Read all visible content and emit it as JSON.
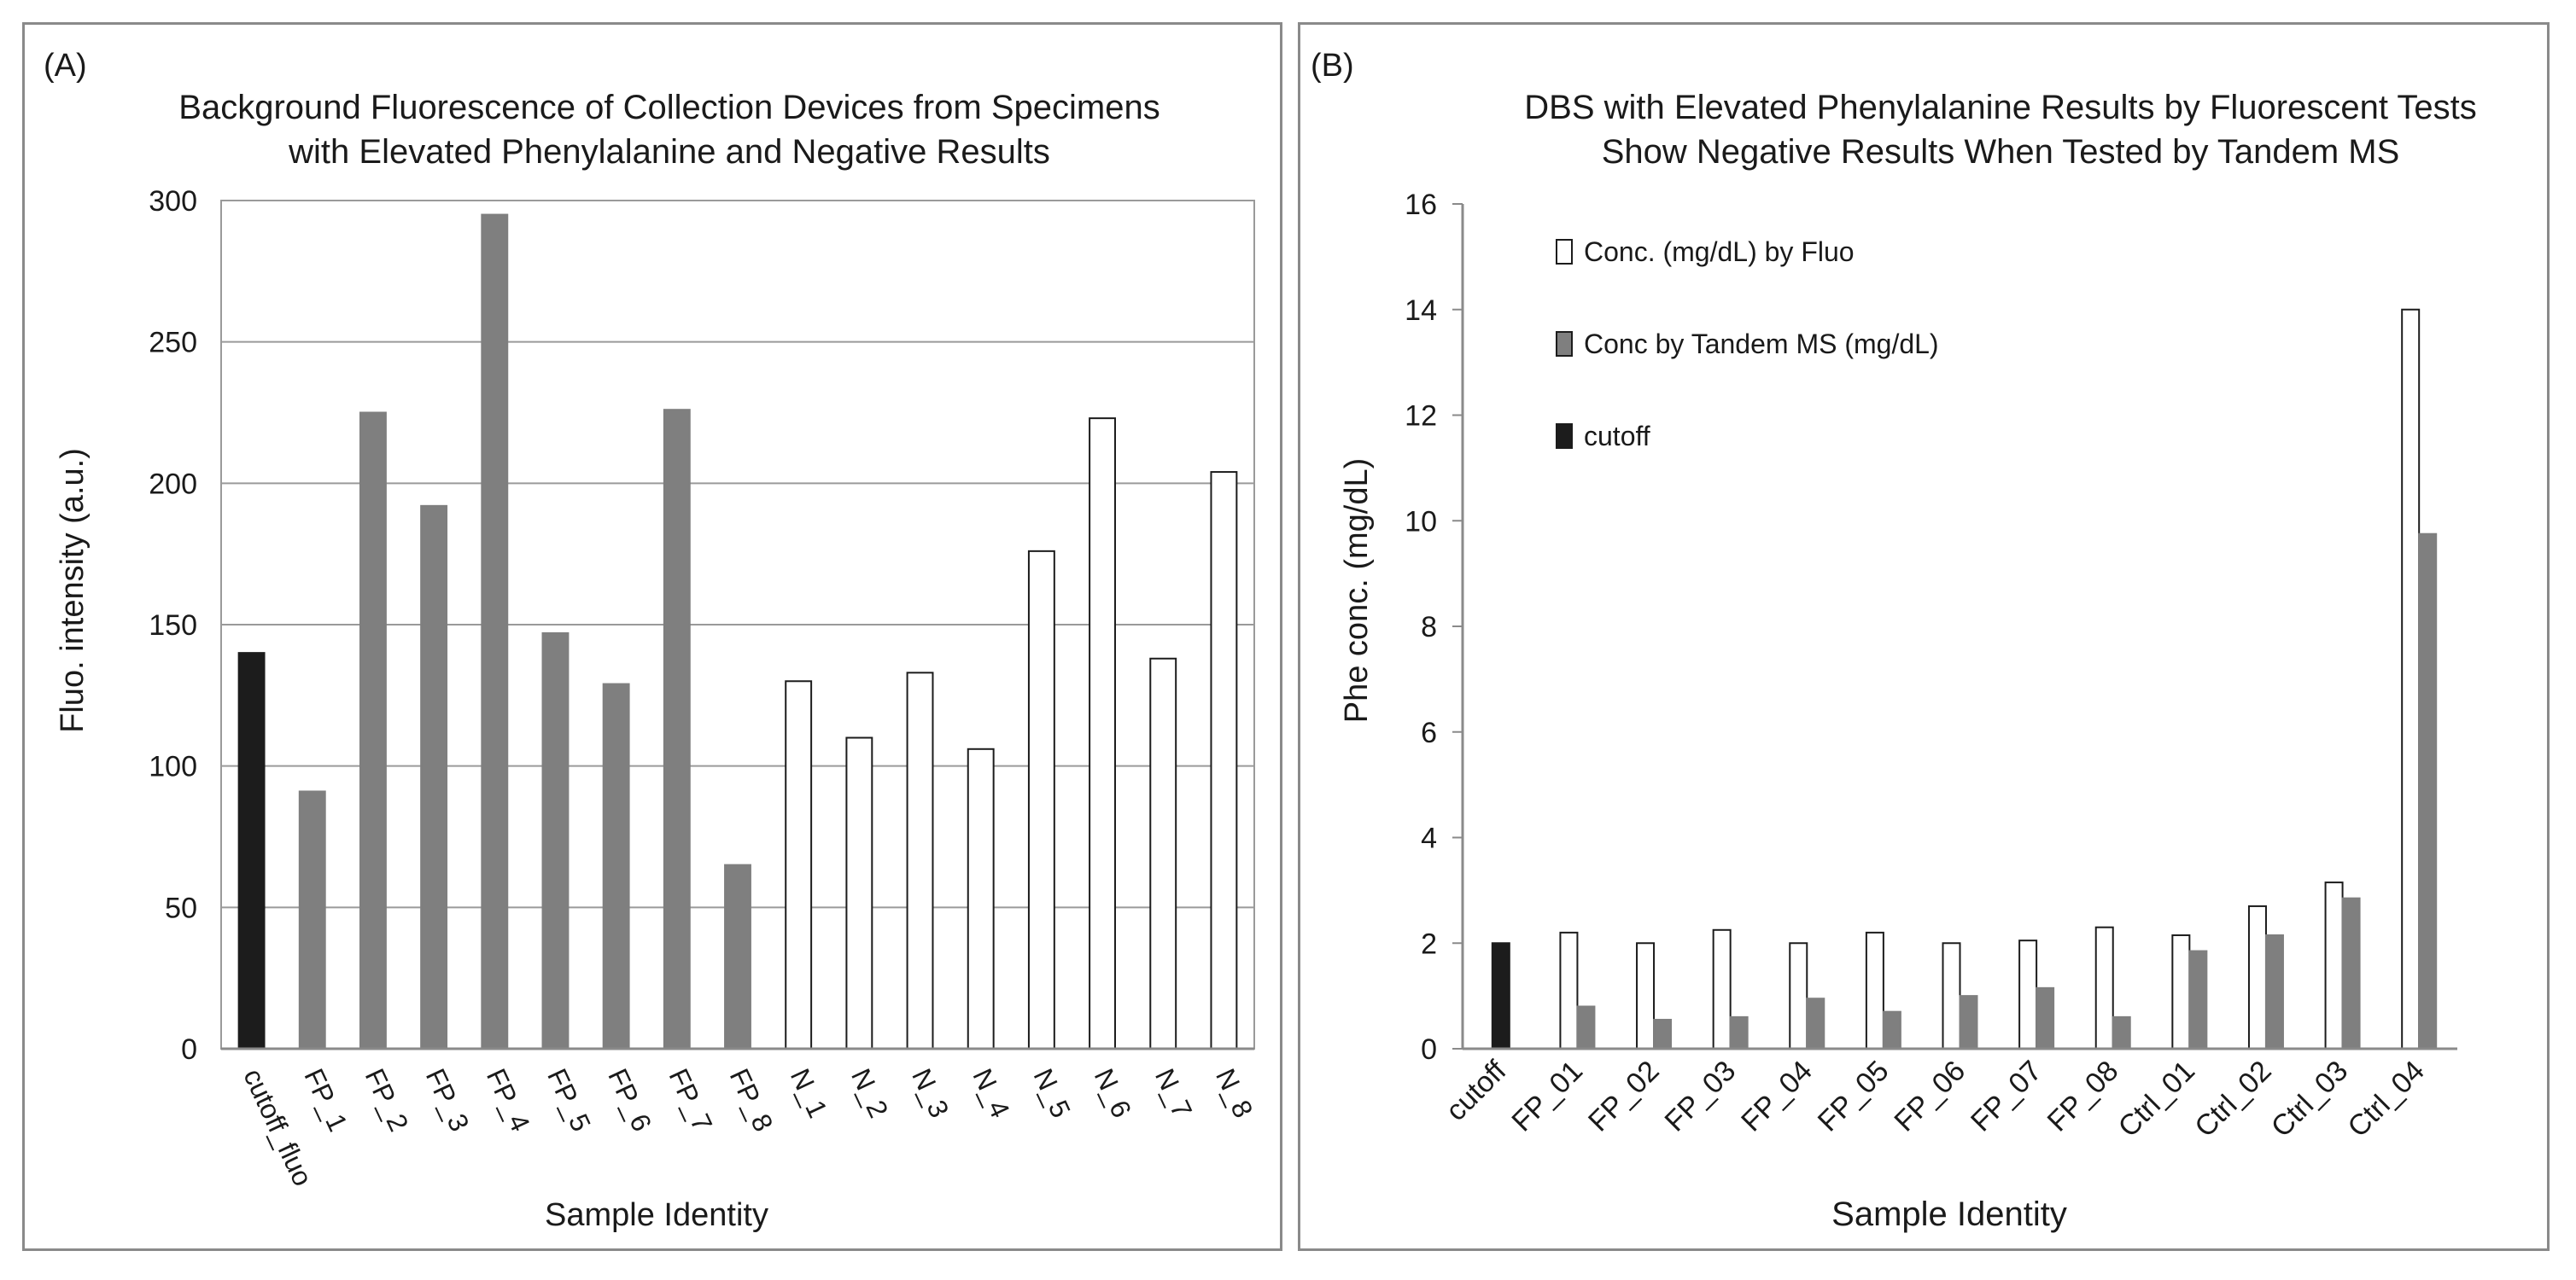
{
  "chart_data": [
    {
      "panel_label": "(A)",
      "type": "bar",
      "title": "Background Fluorescence of Collection Devices from Specimens with Elevated Phenylalanine and Negative Results",
      "title_lines": [
        "Background Fluorescence of Collection Devices from Specimens",
        "with Elevated Phenylalanine and Negative Results"
      ],
      "xlabel": "Sample Identity",
      "ylabel": "Fluo. intensity (a.u.)",
      "ylim": [
        0,
        300
      ],
      "yticks": [
        "0",
        "50",
        "100",
        "150",
        "200",
        "250",
        "300"
      ],
      "grid": true,
      "categories": [
        "cutoff_fluo",
        "FP_1",
        "FP_2",
        "FP_3",
        "FP_4",
        "FP_5",
        "FP_6",
        "FP_7",
        "FP_8",
        "N_1",
        "N_2",
        "N_3",
        "N_4",
        "N_5",
        "N_6",
        "N_7",
        "N_8"
      ],
      "values": [
        140,
        91,
        225,
        192,
        295,
        147,
        129,
        226,
        65,
        130,
        110,
        133,
        106,
        176,
        223,
        138,
        204
      ],
      "bar_colors": [
        "#1c1c1c",
        "#7f7f7f",
        "#7f7f7f",
        "#7f7f7f",
        "#7f7f7f",
        "#7f7f7f",
        "#7f7f7f",
        "#7f7f7f",
        "#7f7f7f",
        "#ffffff",
        "#ffffff",
        "#ffffff",
        "#ffffff",
        "#ffffff",
        "#ffffff",
        "#ffffff",
        "#ffffff"
      ]
    },
    {
      "panel_label": "(B)",
      "type": "bar",
      "title": "DBS with Elevated Phenylalanine Results by Fluorescent Tests Show Negative Results When Tested by Tandem MS",
      "title_lines": [
        "DBS with Elevated Phenylalanine Results by Fluorescent Tests",
        "Show Negative Results When Tested by Tandem MS"
      ],
      "xlabel": "Sample Identity",
      "ylabel": "Phe conc. (mg/dL)",
      "ylim": [
        0,
        16
      ],
      "yticks": [
        "0",
        "2",
        "4",
        "6",
        "8",
        "10",
        "12",
        "14",
        "16"
      ],
      "grid": false,
      "legend_position": "top-left",
      "categories": [
        "cutoff",
        "FP_01",
        "FP_02",
        "FP_03",
        "FP_04",
        "FP_05",
        "FP_06",
        "FP_07",
        "FP_08",
        "Ctrl_01",
        "Ctrl_02",
        "Ctrl_03",
        "Ctrl_04"
      ],
      "series": [
        {
          "name": "Conc. (mg/dL) by Fluo",
          "color": "#ffffff",
          "values": [
            null,
            2.2,
            2.0,
            2.25,
            2.0,
            2.2,
            2.0,
            2.05,
            2.3,
            2.15,
            2.7,
            3.15,
            14.0
          ]
        },
        {
          "name": "Conc by Tandem MS (mg/dL)",
          "color": "#7f7f7f",
          "values": [
            null,
            0.8,
            0.55,
            0.6,
            0.95,
            0.7,
            1.0,
            1.15,
            0.6,
            1.85,
            2.15,
            2.85,
            9.75
          ]
        },
        {
          "name": "cutoff",
          "color": "#1c1c1c",
          "values": [
            2.0,
            null,
            null,
            null,
            null,
            null,
            null,
            null,
            null,
            null,
            null,
            null,
            null
          ]
        }
      ]
    }
  ]
}
